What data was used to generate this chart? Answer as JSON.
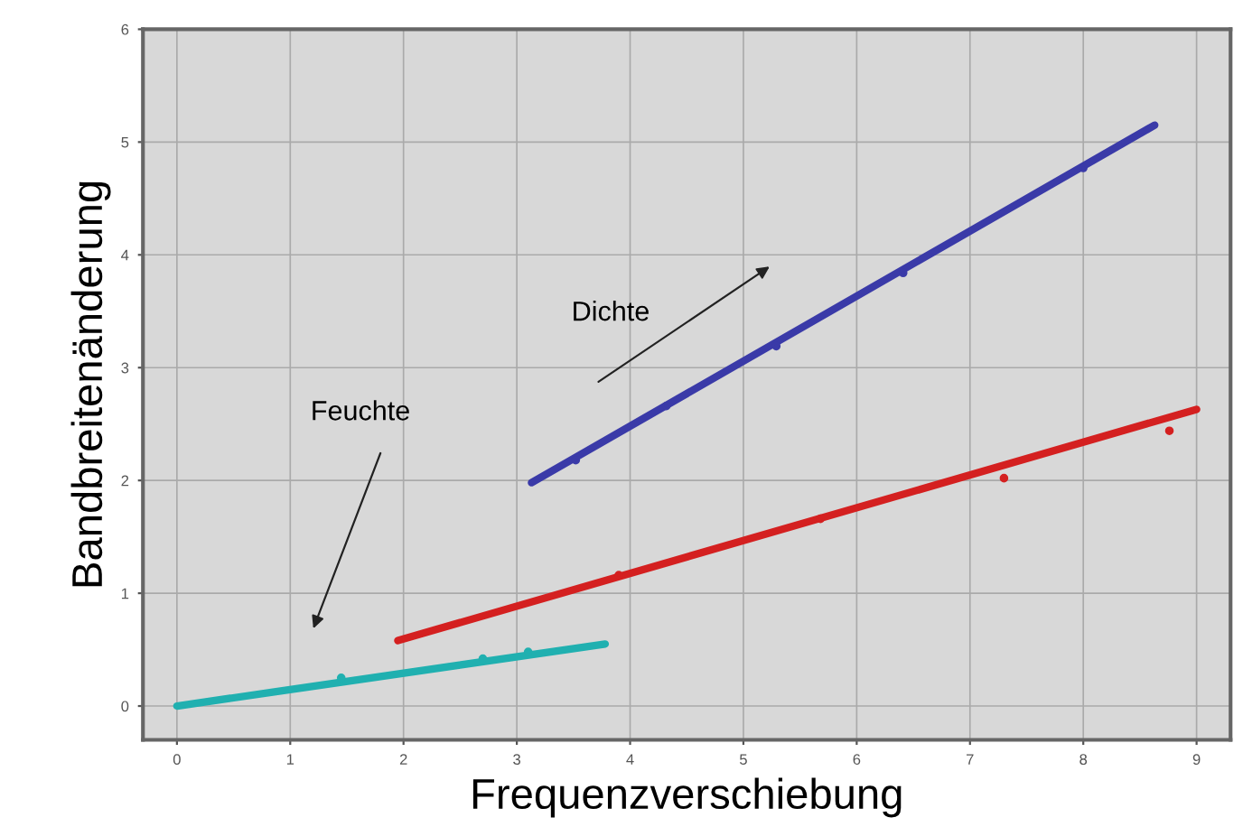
{
  "chart_data": {
    "type": "line",
    "xlabel": "Frequenzverschiebung",
    "ylabel": "Bandbreitenänderung",
    "xlim": [
      -0.3,
      9.3
    ],
    "ylim": [
      -0.3,
      6.0
    ],
    "xticks": [
      0,
      1,
      2,
      3,
      4,
      5,
      6,
      7,
      8,
      9
    ],
    "yticks": [
      0,
      1,
      2,
      3,
      4,
      5,
      6
    ],
    "grid": true,
    "marker": "none",
    "line_style": "solid",
    "series": [
      {
        "color": "#20b0b0",
        "x": [
          0,
          3.78
        ],
        "values": [
          0,
          0.55
        ]
      },
      {
        "type": "scatter",
        "color": "#20b0b0",
        "x": [
          1.45,
          2.7,
          3.1
        ],
        "values": [
          0.25,
          0.42,
          0.48
        ]
      },
      {
        "color": "#d42020",
        "x": [
          1.95,
          9.0
        ],
        "values": [
          0.58,
          2.63
        ]
      },
      {
        "type": "scatter",
        "color": "#d42020",
        "x": [
          3.9,
          5.68,
          7.3,
          8.76
        ],
        "values": [
          1.16,
          1.66,
          2.02,
          2.44
        ]
      },
      {
        "color": "#3a3aa8",
        "x": [
          3.13,
          8.63
        ],
        "values": [
          1.98,
          5.15
        ]
      },
      {
        "type": "scatter",
        "color": "#3a3aa8",
        "x": [
          3.52,
          4.32,
          5.29,
          6.41,
          8.0
        ],
        "values": [
          2.18,
          2.66,
          3.19,
          3.84,
          4.77
        ]
      }
    ],
    "annotations": [
      "Dichte",
      "Feuchte"
    ]
  }
}
